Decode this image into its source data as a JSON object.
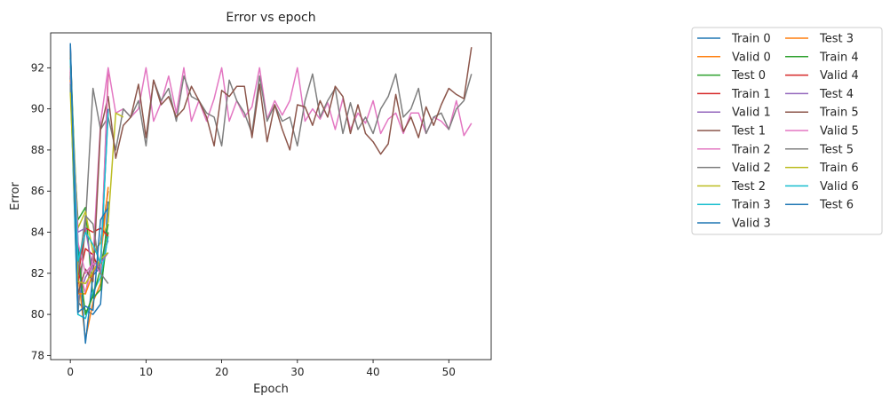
{
  "chart_data": {
    "type": "line",
    "title": "Error vs epoch",
    "xlabel": "Epoch",
    "ylabel": "Error",
    "xlim": [
      -2.6,
      55.6
    ],
    "ylim": [
      77.8,
      93.7
    ],
    "xticks": [
      0,
      10,
      20,
      30,
      40,
      50
    ],
    "yticks": [
      78,
      80,
      82,
      84,
      86,
      88,
      90,
      92
    ],
    "grid": false,
    "legend_location": "outside-right",
    "legend_columns": 2,
    "series": [
      {
        "name": "Train 0",
        "color": "#1f77b4",
        "x": [
          0,
          1,
          2,
          3,
          4,
          5
        ],
        "y": [
          93.2,
          80.6,
          80.2,
          80.0,
          80.5,
          85.5
        ]
      },
      {
        "name": "Valid 0",
        "color": "#ff7f0e",
        "x": [
          0,
          1,
          2,
          3,
          4,
          5
        ],
        "y": [
          91.5,
          82.0,
          78.8,
          80.6,
          81.5,
          84.0
        ]
      },
      {
        "name": "Test 0",
        "color": "#2ca02c",
        "x": [
          0,
          1,
          2,
          3,
          4,
          5
        ],
        "y": [
          91.0,
          84.6,
          85.2,
          80.8,
          81.2,
          84.0
        ]
      },
      {
        "name": "Train 1",
        "color": "#d62728",
        "x": [
          0,
          1,
          2,
          3,
          4,
          5
        ],
        "y": [
          92.5,
          81.5,
          83.2,
          82.9,
          82.0,
          91.7
        ]
      },
      {
        "name": "Valid 1",
        "color": "#9467bd",
        "x": [
          0,
          1,
          2,
          3,
          4,
          5
        ],
        "y": [
          93.0,
          80.7,
          81.8,
          82.4,
          82.6,
          83.6
        ]
      },
      {
        "name": "Test 1",
        "color": "#8c564b",
        "x": [
          0,
          1,
          2,
          3,
          4,
          5
        ],
        "y": [
          91.6,
          82.3,
          81.0,
          82.9,
          83.5,
          86.0
        ]
      },
      {
        "name": "Train 2",
        "color": "#e377c2",
        "x": [
          0,
          1,
          2,
          3,
          4,
          5,
          6,
          7,
          8,
          9,
          10,
          11,
          12,
          13,
          14,
          15,
          16,
          17,
          18,
          19,
          20,
          21,
          22,
          23,
          24,
          25,
          26,
          27,
          28,
          29,
          30,
          31,
          32,
          33,
          34,
          35,
          36,
          37,
          38,
          39,
          40,
          41,
          42,
          43,
          44,
          45,
          46,
          47,
          48,
          49,
          50,
          51,
          52,
          53
        ],
        "y": [
          92.2,
          82.5,
          81.0,
          82.7,
          89.3,
          92.0,
          89.8,
          90.0,
          89.6,
          90.0,
          92.0,
          89.4,
          90.3,
          91.6,
          89.8,
          92.0,
          89.4,
          90.4,
          89.4,
          90.5,
          92.0,
          89.4,
          90.4,
          89.6,
          90.1,
          92.0,
          89.5,
          90.4,
          89.7,
          90.4,
          92.0,
          89.4,
          90.0,
          89.5,
          90.3,
          89.0,
          90.5,
          89.0,
          89.8,
          89.3,
          90.4,
          88.8,
          89.5,
          89.8,
          88.8,
          89.8,
          89.8,
          88.8,
          89.6,
          89.4,
          89.0,
          90.4,
          88.7,
          89.3
        ]
      },
      {
        "name": "Valid 2",
        "color": "#7f7f7f",
        "x": [
          0,
          1,
          2,
          3,
          4,
          5,
          6,
          7,
          8,
          9,
          10,
          11,
          12,
          13,
          14,
          15,
          16,
          17,
          18,
          19,
          20,
          21,
          22,
          23,
          24,
          25,
          26,
          27,
          28,
          29,
          30,
          31,
          32,
          33,
          34,
          35,
          36,
          37,
          38,
          39,
          40,
          41,
          42,
          43,
          44,
          45,
          46,
          47,
          48,
          49,
          50,
          51,
          52,
          53
        ],
        "y": [
          91.5,
          80.0,
          84.4,
          91.0,
          89.0,
          89.6,
          88.0,
          90.0,
          89.6,
          90.4,
          88.2,
          91.4,
          90.4,
          91.0,
          89.4,
          91.6,
          90.6,
          90.4,
          89.8,
          89.6,
          88.2,
          91.4,
          90.4,
          89.8,
          88.8,
          91.6,
          89.4,
          90.2,
          89.4,
          89.6,
          88.2,
          90.4,
          91.7,
          89.6,
          90.4,
          91.0,
          88.8,
          90.3,
          89.0,
          89.6,
          88.8,
          90.0,
          90.6,
          91.7,
          89.6,
          90.0,
          91.0,
          88.8,
          89.6,
          89.8,
          89.0,
          90.0,
          90.4,
          91.7
        ]
      },
      {
        "name": "Test 2",
        "color": "#bcbd22",
        "x": [
          0,
          1,
          2,
          3,
          4,
          5,
          6,
          7
        ],
        "y": [
          92.1,
          84.2,
          85.0,
          83.0,
          83.5,
          84.5,
          89.8,
          89.6
        ]
      },
      {
        "name": "Train 3",
        "color": "#17becf",
        "x": [
          0,
          1,
          2,
          3,
          4,
          5
        ],
        "y": [
          91.2,
          80.0,
          79.8,
          81.1,
          81.8,
          83.8
        ]
      },
      {
        "name": "Valid 3",
        "color": "#1f77b4",
        "x": [
          0,
          1,
          2,
          3,
          4,
          5
        ],
        "y": [
          91.8,
          83.6,
          78.6,
          81.9,
          82.3,
          90.0
        ]
      },
      {
        "name": "Test 3",
        "color": "#ff7f0e",
        "x": [
          0,
          1,
          2,
          3,
          4,
          5
        ],
        "y": [
          91.4,
          81.0,
          81.0,
          82.0,
          82.7,
          86.2
        ]
      },
      {
        "name": "Train 4",
        "color": "#2ca02c",
        "x": [
          0,
          1,
          2,
          3,
          4,
          5
        ],
        "y": [
          92.8,
          83.0,
          80.0,
          80.9,
          82.2,
          84.4
        ]
      },
      {
        "name": "Valid 4",
        "color": "#d62728",
        "x": [
          0,
          1,
          2,
          3,
          4,
          5
        ],
        "y": [
          92.0,
          81.8,
          84.2,
          84.0,
          84.2,
          83.8
        ]
      },
      {
        "name": "Test 4",
        "color": "#9467bd",
        "x": [
          0,
          1,
          2,
          3,
          4,
          5
        ],
        "y": [
          91.3,
          84.0,
          84.2,
          82.0,
          82.5,
          83.0
        ]
      },
      {
        "name": "Train 5",
        "color": "#8c564b",
        "x": [
          0,
          1,
          2,
          3,
          4,
          5,
          6,
          7,
          8,
          9,
          10,
          11,
          12,
          13,
          14,
          15,
          16,
          17,
          18,
          19,
          20,
          21,
          22,
          23,
          24,
          25,
          26,
          27,
          28,
          29,
          30,
          31,
          32,
          33,
          34,
          35,
          36,
          37,
          38,
          39,
          40,
          41,
          42,
          43,
          44,
          45,
          46,
          47,
          48,
          49,
          50,
          51,
          52,
          53
        ],
        "y": [
          92.9,
          81.0,
          82.2,
          81.6,
          89.0,
          90.6,
          87.6,
          89.2,
          89.6,
          91.2,
          88.6,
          91.4,
          90.2,
          90.6,
          89.6,
          90.0,
          91.1,
          90.4,
          89.6,
          88.2,
          90.9,
          90.6,
          91.1,
          91.1,
          88.6,
          91.2,
          88.4,
          90.2,
          89.0,
          88.0,
          90.2,
          90.1,
          89.2,
          90.4,
          89.6,
          91.1,
          90.6,
          88.8,
          90.2,
          88.8,
          88.4,
          87.8,
          88.3,
          90.7,
          88.9,
          89.6,
          88.6,
          90.1,
          89.2,
          90.2,
          91.0,
          90.7,
          90.5,
          93.0
        ]
      },
      {
        "name": "Valid 5",
        "color": "#e377c2",
        "x": [
          0,
          1,
          2,
          3,
          4,
          5
        ],
        "y": [
          92.0,
          83.5,
          82.0,
          82.5,
          82.0,
          92.0
        ]
      },
      {
        "name": "Test 5",
        "color": "#7f7f7f",
        "x": [
          0,
          1,
          2,
          3,
          4,
          5
        ],
        "y": [
          91.2,
          82.0,
          84.8,
          84.4,
          82.0,
          81.5
        ]
      },
      {
        "name": "Train 6",
        "color": "#bcbd22",
        "x": [
          0,
          1,
          2,
          3,
          4,
          5
        ],
        "y": [
          90.8,
          81.6,
          81.5,
          82.1,
          82.7,
          83.0
        ]
      },
      {
        "name": "Valid 6",
        "color": "#17becf",
        "x": [
          0,
          1,
          2,
          3,
          4,
          5
        ],
        "y": [
          92.4,
          82.6,
          84.0,
          83.4,
          82.5,
          89.8
        ]
      },
      {
        "name": "Test 6",
        "color": "#1f77b4",
        "x": [
          0,
          1,
          2,
          3,
          4,
          5
        ],
        "y": [
          93.1,
          80.1,
          80.4,
          80.2,
          84.6,
          85.2
        ]
      }
    ]
  }
}
